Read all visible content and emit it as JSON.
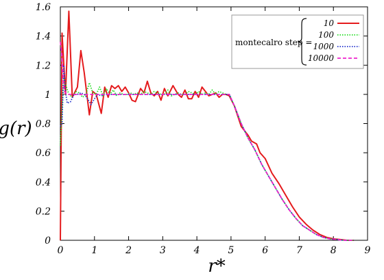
{
  "chart_data": {
    "type": "line",
    "xlabel": "r*",
    "ylabel": "g(r)",
    "xlim": [
      0,
      9
    ],
    "ylim": [
      0,
      1.6
    ],
    "x_ticks": [
      "0",
      "1",
      "2",
      "3",
      "4",
      "5",
      "6",
      "7",
      "8",
      "9"
    ],
    "y_ticks": [
      "0",
      "0.2",
      "0.4",
      "0.6",
      "0.8",
      "1",
      "1.2",
      "1.4",
      "1.6"
    ],
    "grid": false,
    "legend": {
      "placement": "top-right",
      "title": "montecalro step ="
    },
    "series": [
      {
        "name": "10",
        "color": "#e41a1c",
        "dash": "solid",
        "x": [
          0.0,
          0.05,
          0.15,
          0.25,
          0.35,
          0.5,
          0.6,
          0.7,
          0.85,
          0.95,
          1.05,
          1.2,
          1.3,
          1.4,
          1.5,
          1.6,
          1.7,
          1.8,
          1.9,
          2.0,
          2.1,
          2.2,
          2.35,
          2.45,
          2.55,
          2.65,
          2.75,
          2.85,
          2.95,
          3.05,
          3.15,
          3.3,
          3.45,
          3.55,
          3.65,
          3.75,
          3.85,
          3.95,
          4.05,
          4.15,
          4.25,
          4.35,
          4.45,
          4.55,
          4.65,
          4.75,
          4.85,
          4.95,
          5.1,
          5.3,
          5.5,
          5.6,
          5.75,
          5.85,
          6.0,
          6.2,
          6.4,
          6.6,
          6.8,
          7.0,
          7.2,
          7.4,
          7.6,
          7.8,
          8.0,
          8.2,
          8.4,
          8.6
        ],
        "y": [
          0.0,
          1.42,
          1.0,
          1.57,
          0.98,
          1.05,
          1.3,
          1.15,
          0.86,
          1.02,
          1.0,
          0.87,
          1.05,
          0.98,
          1.06,
          1.04,
          1.06,
          1.02,
          1.05,
          1.01,
          0.96,
          0.95,
          1.04,
          1.01,
          1.09,
          1.01,
          0.99,
          1.02,
          0.96,
          1.04,
          0.99,
          1.06,
          1.0,
          0.98,
          1.03,
          0.97,
          0.97,
          1.02,
          0.98,
          1.05,
          1.02,
          0.99,
          1.0,
          1.01,
          0.98,
          1.0,
          1.0,
          0.99,
          0.92,
          0.78,
          0.72,
          0.68,
          0.66,
          0.6,
          0.56,
          0.46,
          0.39,
          0.31,
          0.23,
          0.16,
          0.11,
          0.07,
          0.04,
          0.02,
          0.01,
          0.005,
          0.0,
          0.0
        ]
      },
      {
        "name": "100",
        "color": "#22dd22",
        "dash": "dotted",
        "x": [
          0.0,
          0.04,
          0.1,
          0.18,
          0.25,
          0.35,
          0.45,
          0.55,
          0.65,
          0.75,
          0.85,
          0.95,
          1.05,
          1.15,
          1.25,
          1.35,
          1.45,
          1.55,
          1.65,
          1.75,
          1.85,
          1.95,
          2.05,
          2.15,
          2.25,
          2.35,
          2.45,
          2.55,
          2.65,
          2.75,
          2.85,
          2.95,
          3.05,
          3.15,
          3.25,
          3.35,
          3.45,
          3.55,
          3.65,
          3.75,
          3.85,
          3.95,
          4.05,
          4.15,
          4.25,
          4.35,
          4.45,
          4.55,
          4.65,
          4.75,
          4.85,
          4.95,
          5.1,
          5.3,
          5.5,
          5.7,
          5.9,
          6.1,
          6.3,
          6.5,
          6.7,
          6.9,
          7.1,
          7.3,
          7.5,
          7.7,
          7.9,
          8.1,
          8.3,
          8.5,
          8.6
        ],
        "y": [
          0.65,
          0.85,
          1.12,
          1.05,
          1.0,
          0.98,
          1.02,
          1.01,
          0.98,
          1.0,
          1.08,
          1.01,
          1.0,
          1.05,
          0.99,
          1.04,
          1.0,
          1.03,
          0.99,
          1.01,
          1.0,
          1.0,
          1.01,
          1.0,
          1.01,
          1.0,
          1.02,
          1.01,
          1.0,
          1.02,
          1.01,
          1.0,
          1.0,
          1.03,
          0.99,
          1.0,
          1.01,
          1.0,
          1.0,
          1.02,
          1.01,
          1.0,
          1.02,
          1.0,
          1.01,
          1.0,
          1.03,
          1.0,
          1.02,
          1.01,
          1.0,
          1.0,
          0.92,
          0.8,
          0.7,
          0.62,
          0.52,
          0.44,
          0.36,
          0.28,
          0.21,
          0.15,
          0.1,
          0.07,
          0.04,
          0.02,
          0.01,
          0.005,
          0.0,
          0.0,
          0.0
        ]
      },
      {
        "name": "1000",
        "color": "#1f2fcc",
        "dash": "dotted",
        "x": [
          0.0,
          0.05,
          0.1,
          0.15,
          0.2,
          0.3,
          0.4,
          0.5,
          0.6,
          0.7,
          0.8,
          0.9,
          1.0,
          1.1,
          1.2,
          1.3,
          1.4,
          1.5,
          1.6,
          1.8,
          2.0,
          2.2,
          2.4,
          2.6,
          2.8,
          3.0,
          3.2,
          3.4,
          3.6,
          3.8,
          4.0,
          4.2,
          4.4,
          4.6,
          4.8,
          4.95,
          5.1,
          5.3,
          5.5,
          5.7,
          5.9,
          6.1,
          6.3,
          6.5,
          6.7,
          6.9,
          7.1,
          7.3,
          7.5,
          7.7,
          7.9,
          8.1,
          8.3,
          8.5,
          8.6
        ],
        "y": [
          0.78,
          0.8,
          1.2,
          1.02,
          0.94,
          0.95,
          1.0,
          1.0,
          1.01,
          1.0,
          0.97,
          0.93,
          0.97,
          1.0,
          0.99,
          1.0,
          1.0,
          1.0,
          1.0,
          1.0,
          1.0,
          1.0,
          1.0,
          1.0,
          1.0,
          1.0,
          1.0,
          1.0,
          1.0,
          1.0,
          1.0,
          1.0,
          1.0,
          1.0,
          1.0,
          1.0,
          0.92,
          0.8,
          0.7,
          0.62,
          0.52,
          0.44,
          0.36,
          0.28,
          0.21,
          0.15,
          0.1,
          0.07,
          0.04,
          0.02,
          0.01,
          0.005,
          0.0,
          0.0,
          0.0
        ]
      },
      {
        "name": "10000",
        "color": "#ee22cc",
        "dash": "dashed",
        "x": [
          0.0,
          0.04,
          0.08,
          0.12,
          0.2,
          0.3,
          0.4,
          0.6,
          0.8,
          1.0,
          1.2,
          1.5,
          2.0,
          2.5,
          3.0,
          3.5,
          4.0,
          4.5,
          4.95,
          5.1,
          5.3,
          5.5,
          5.7,
          5.9,
          6.1,
          6.3,
          6.5,
          6.7,
          6.9,
          7.1,
          7.3,
          7.5,
          7.7,
          7.9,
          8.1,
          8.3,
          8.5,
          8.6
        ],
        "y": [
          1.36,
          1.28,
          1.1,
          1.02,
          1.0,
          1.0,
          1.0,
          1.0,
          1.0,
          1.0,
          1.0,
          1.0,
          1.0,
          1.0,
          1.0,
          1.0,
          1.0,
          1.0,
          1.0,
          0.92,
          0.8,
          0.7,
          0.62,
          0.52,
          0.44,
          0.36,
          0.28,
          0.21,
          0.15,
          0.1,
          0.07,
          0.04,
          0.02,
          0.01,
          0.005,
          0.0,
          0.0,
          0.0
        ]
      }
    ]
  }
}
